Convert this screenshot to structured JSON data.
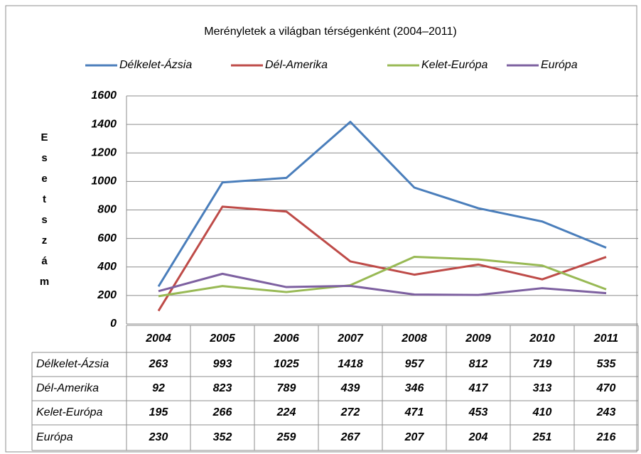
{
  "chart_data": {
    "type": "line",
    "title": "Merényletek a világban térségenként (2004–2011)",
    "ylabel": "Esetszám",
    "categories": [
      "2004",
      "2005",
      "2006",
      "2007",
      "2008",
      "2009",
      "2010",
      "2011"
    ],
    "series": [
      {
        "name": "Délkelet-Ázsia",
        "color": "#4a7ebb",
        "values": [
          263,
          993,
          1025,
          1418,
          957,
          812,
          719,
          535
        ]
      },
      {
        "name": "Dél-Amerika",
        "color": "#be4b48",
        "values": [
          92,
          823,
          789,
          439,
          346,
          417,
          313,
          470
        ]
      },
      {
        "name": "Kelet-Európa",
        "color": "#98b954",
        "values": [
          195,
          266,
          224,
          272,
          471,
          453,
          410,
          243
        ]
      },
      {
        "name": "Európa",
        "color": "#7d60a0",
        "values": [
          230,
          352,
          259,
          267,
          207,
          204,
          251,
          216
        ]
      }
    ],
    "ylim": [
      0,
      1600
    ],
    "yticks": [
      0,
      200,
      400,
      600,
      800,
      1000,
      1200,
      1400,
      1600
    ],
    "grid": true,
    "legend": "top",
    "data_table": true
  }
}
